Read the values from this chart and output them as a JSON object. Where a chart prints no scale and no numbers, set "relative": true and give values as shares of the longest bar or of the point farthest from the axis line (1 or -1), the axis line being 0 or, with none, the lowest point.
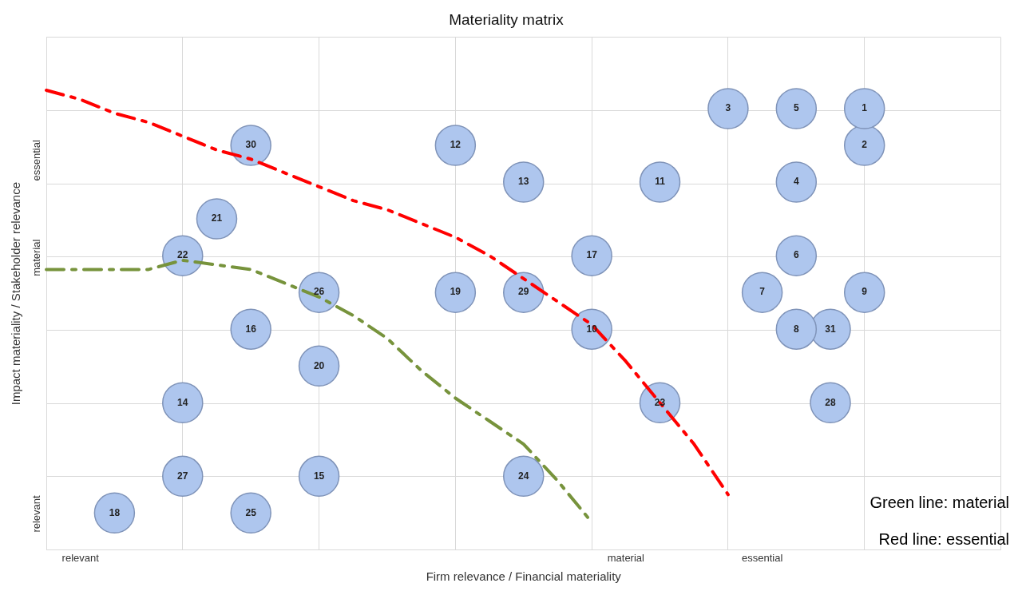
{
  "chart_data": {
    "type": "scatter",
    "title": "Materiality matrix",
    "xlabel": "Firm relevance / Financial materiality",
    "ylabel": "Impact materiality / Stakeholder relevance",
    "relative": true,
    "tick_labels": "x",
    "grid": true,
    "categories": [
      null,
      "relevant",
      null,
      null,
      null,
      null,
      null,
      null,
      null,
      null,
      null,
      null,
      null,
      null,
      null,
      null,
      null,
      "material",
      null,
      null,
      null,
      "essential",
      null,
      null,
      null,
      null,
      null,
      null,
      null
    ],
    "annotations": [
      "Green line: material",
      "Red line: essential",
      "relevant",
      "material",
      "essential"
    ],
    "series": [
      {
        "name": "1",
        "color": "#aec6ee",
        "values": [
          null,
          null,
          null,
          null,
          null,
          null,
          null,
          null,
          null,
          null,
          null,
          null,
          null,
          null,
          null,
          null,
          null,
          null,
          null,
          null,
          null,
          null,
          null,
          null,
          0.96,
          null,
          null,
          null,
          null
        ]
      },
      {
        "name": "2",
        "color": "#aec6ee",
        "values": [
          null,
          null,
          null,
          null,
          null,
          null,
          null,
          null,
          null,
          null,
          null,
          null,
          null,
          null,
          null,
          null,
          null,
          null,
          null,
          null,
          null,
          null,
          null,
          null,
          0.88,
          null,
          null,
          null,
          null
        ]
      },
      {
        "name": "3",
        "color": "#aec6ee",
        "values": [
          null,
          null,
          null,
          null,
          null,
          null,
          null,
          null,
          null,
          null,
          null,
          null,
          null,
          null,
          null,
          null,
          null,
          null,
          null,
          null,
          0.96,
          null,
          null,
          null,
          null,
          null,
          null,
          null,
          null
        ]
      },
      {
        "name": "4",
        "color": "#aec6ee",
        "values": [
          null,
          null,
          null,
          null,
          null,
          null,
          null,
          null,
          null,
          null,
          null,
          null,
          null,
          null,
          null,
          null,
          null,
          null,
          null,
          null,
          null,
          null,
          0.8,
          null,
          null,
          null,
          null,
          null,
          null
        ]
      },
      {
        "name": "5",
        "color": "#aec6ee",
        "values": [
          null,
          null,
          null,
          null,
          null,
          null,
          null,
          null,
          null,
          null,
          null,
          null,
          null,
          null,
          null,
          null,
          null,
          null,
          null,
          null,
          null,
          null,
          0.96,
          null,
          null,
          null,
          null,
          null,
          null
        ]
      },
      {
        "name": "6",
        "color": "#aec6ee",
        "values": [
          null,
          null,
          null,
          null,
          null,
          null,
          null,
          null,
          null,
          null,
          null,
          null,
          null,
          null,
          null,
          null,
          null,
          null,
          null,
          null,
          null,
          null,
          0.64,
          null,
          null,
          null,
          null,
          null,
          null
        ]
      },
      {
        "name": "7",
        "color": "#aec6ee",
        "values": [
          null,
          null,
          null,
          null,
          null,
          null,
          null,
          null,
          null,
          null,
          null,
          null,
          null,
          null,
          null,
          null,
          null,
          null,
          null,
          null,
          null,
          0.56,
          null,
          null,
          null,
          null,
          null,
          null,
          null
        ]
      },
      {
        "name": "8",
        "color": "#aec6ee",
        "values": [
          null,
          null,
          null,
          null,
          null,
          null,
          null,
          null,
          null,
          null,
          null,
          null,
          null,
          null,
          null,
          null,
          null,
          null,
          null,
          null,
          null,
          null,
          0.48,
          null,
          null,
          null,
          null,
          null,
          null
        ]
      },
      {
        "name": "9",
        "color": "#aec6ee",
        "values": [
          null,
          null,
          null,
          null,
          null,
          null,
          null,
          null,
          null,
          null,
          null,
          null,
          null,
          null,
          null,
          null,
          null,
          null,
          null,
          null,
          null,
          null,
          null,
          null,
          0.56,
          null,
          null,
          null,
          null
        ]
      },
      {
        "name": "10",
        "color": "#aec6ee",
        "values": [
          null,
          null,
          null,
          null,
          null,
          null,
          null,
          null,
          null,
          null,
          null,
          null,
          null,
          null,
          null,
          null,
          0.48,
          null,
          null,
          null,
          null,
          null,
          null,
          null,
          null,
          null,
          null,
          null,
          null
        ]
      },
      {
        "name": "11",
        "color": "#aec6ee",
        "values": [
          null,
          null,
          null,
          null,
          null,
          null,
          null,
          null,
          null,
          null,
          null,
          null,
          null,
          null,
          null,
          null,
          null,
          null,
          0.8,
          null,
          null,
          null,
          null,
          null,
          null,
          null,
          null,
          null,
          null
        ]
      },
      {
        "name": "12",
        "color": "#aec6ee",
        "values": [
          null,
          null,
          null,
          null,
          null,
          null,
          null,
          null,
          null,
          null,
          null,
          null,
          0.88,
          null,
          null,
          null,
          null,
          null,
          null,
          null,
          null,
          null,
          null,
          null,
          null,
          null,
          null,
          null,
          null
        ]
      },
      {
        "name": "13",
        "color": "#aec6ee",
        "values": [
          null,
          null,
          null,
          null,
          null,
          null,
          null,
          null,
          null,
          null,
          null,
          null,
          null,
          null,
          0.8,
          null,
          null,
          null,
          null,
          null,
          null,
          null,
          null,
          null,
          null,
          null,
          null,
          null,
          null
        ]
      },
      {
        "name": "14",
        "color": "#aec6ee",
        "values": [
          null,
          null,
          null,
          null,
          0.32,
          null,
          null,
          null,
          null,
          null,
          null,
          null,
          null,
          null,
          null,
          null,
          null,
          null,
          null,
          null,
          null,
          null,
          null,
          null,
          null,
          null,
          null,
          null,
          null
        ]
      },
      {
        "name": "15",
        "color": "#aec6ee",
        "values": [
          null,
          null,
          null,
          null,
          null,
          null,
          null,
          null,
          0.16,
          null,
          null,
          null,
          null,
          null,
          null,
          null,
          null,
          null,
          null,
          null,
          null,
          null,
          null,
          null,
          null,
          null,
          null,
          null,
          null
        ]
      },
      {
        "name": "16",
        "color": "#aec6ee",
        "values": [
          null,
          null,
          null,
          null,
          null,
          null,
          0.48,
          null,
          null,
          null,
          null,
          null,
          null,
          null,
          null,
          null,
          null,
          null,
          null,
          null,
          null,
          null,
          null,
          null,
          null,
          null,
          null,
          null,
          null
        ]
      },
      {
        "name": "17",
        "color": "#aec6ee",
        "values": [
          null,
          null,
          null,
          null,
          null,
          null,
          null,
          null,
          null,
          null,
          null,
          null,
          null,
          null,
          null,
          null,
          0.64,
          null,
          null,
          null,
          null,
          null,
          null,
          null,
          null,
          null,
          null,
          null,
          null
        ]
      },
      {
        "name": "18",
        "color": "#aec6ee",
        "values": [
          null,
          null,
          0.08,
          null,
          null,
          null,
          null,
          null,
          null,
          null,
          null,
          null,
          null,
          null,
          null,
          null,
          null,
          null,
          null,
          null,
          null,
          null,
          null,
          null,
          null,
          null,
          null,
          null,
          null
        ]
      },
      {
        "name": "19",
        "color": "#aec6ee",
        "values": [
          null,
          null,
          null,
          null,
          null,
          null,
          null,
          null,
          null,
          null,
          null,
          null,
          0.56,
          null,
          null,
          null,
          null,
          null,
          null,
          null,
          null,
          null,
          null,
          null,
          null,
          null,
          null,
          null,
          null
        ]
      },
      {
        "name": "20",
        "color": "#aec6ee",
        "values": [
          null,
          null,
          null,
          null,
          null,
          null,
          null,
          null,
          0.4,
          null,
          null,
          null,
          null,
          null,
          null,
          null,
          null,
          null,
          null,
          null,
          null,
          null,
          null,
          null,
          null,
          null,
          null,
          null,
          null
        ]
      },
      {
        "name": "21",
        "color": "#aec6ee",
        "values": [
          null,
          null,
          null,
          null,
          null,
          0.72,
          null,
          null,
          null,
          null,
          null,
          null,
          null,
          null,
          null,
          null,
          null,
          null,
          null,
          null,
          null,
          null,
          null,
          null,
          null,
          null,
          null,
          null,
          null
        ]
      },
      {
        "name": "22",
        "color": "#aec6ee",
        "values": [
          null,
          null,
          null,
          null,
          0.64,
          null,
          null,
          null,
          null,
          null,
          null,
          null,
          null,
          null,
          null,
          null,
          null,
          null,
          null,
          null,
          null,
          null,
          null,
          null,
          null,
          null,
          null,
          null,
          null
        ]
      },
      {
        "name": "23",
        "color": "#aec6ee",
        "values": [
          null,
          null,
          null,
          null,
          null,
          null,
          null,
          null,
          null,
          null,
          null,
          null,
          null,
          null,
          null,
          null,
          null,
          null,
          0.32,
          null,
          null,
          null,
          null,
          null,
          null,
          null,
          null,
          null,
          null
        ]
      },
      {
        "name": "24",
        "color": "#aec6ee",
        "values": [
          null,
          null,
          null,
          null,
          null,
          null,
          null,
          null,
          null,
          null,
          null,
          null,
          null,
          null,
          0.16,
          null,
          null,
          null,
          null,
          null,
          null,
          null,
          null,
          null,
          null,
          null,
          null,
          null,
          null
        ]
      },
      {
        "name": "25",
        "color": "#aec6ee",
        "values": [
          null,
          null,
          null,
          null,
          null,
          null,
          0.08,
          null,
          null,
          null,
          null,
          null,
          null,
          null,
          null,
          null,
          null,
          null,
          null,
          null,
          null,
          null,
          null,
          null,
          null,
          null,
          null,
          null,
          null
        ]
      },
      {
        "name": "26",
        "color": "#aec6ee",
        "values": [
          null,
          null,
          null,
          null,
          null,
          null,
          null,
          null,
          0.56,
          null,
          null,
          null,
          null,
          null,
          null,
          null,
          null,
          null,
          null,
          null,
          null,
          null,
          null,
          null,
          null,
          null,
          null,
          null,
          null
        ]
      },
      {
        "name": "27",
        "color": "#aec6ee",
        "values": [
          null,
          null,
          null,
          null,
          0.16,
          null,
          null,
          null,
          null,
          null,
          null,
          null,
          null,
          null,
          null,
          null,
          null,
          null,
          null,
          null,
          null,
          null,
          null,
          null,
          null,
          null,
          null,
          null,
          null
        ]
      },
      {
        "name": "28",
        "color": "#aec6ee",
        "values": [
          null,
          null,
          null,
          null,
          null,
          null,
          null,
          null,
          null,
          null,
          null,
          null,
          null,
          null,
          null,
          null,
          null,
          null,
          null,
          null,
          null,
          null,
          null,
          0.32,
          null,
          null,
          null,
          null,
          null
        ]
      },
      {
        "name": "29",
        "color": "#aec6ee",
        "values": [
          null,
          null,
          null,
          null,
          null,
          null,
          null,
          null,
          null,
          null,
          null,
          null,
          null,
          null,
          0.56,
          null,
          null,
          null,
          null,
          null,
          null,
          null,
          null,
          null,
          null,
          null,
          null,
          null,
          null
        ]
      },
      {
        "name": "30",
        "color": "#aec6ee",
        "values": [
          null,
          null,
          null,
          null,
          null,
          null,
          0.88,
          null,
          null,
          null,
          null,
          null,
          null,
          null,
          null,
          null,
          null,
          null,
          null,
          null,
          null,
          null,
          null,
          null,
          null,
          null,
          null,
          null,
          null
        ]
      },
      {
        "name": "31",
        "color": "#aec6ee",
        "values": [
          null,
          null,
          null,
          null,
          null,
          null,
          null,
          null,
          null,
          null,
          null,
          null,
          null,
          null,
          null,
          null,
          null,
          null,
          null,
          null,
          null,
          null,
          null,
          0.48,
          null,
          null,
          null,
          null,
          null
        ]
      },
      {
        "type": "line",
        "color": "#ff0000",
        "line_style": "dashed",
        "values": [
          1,
          0.98,
          0.95,
          0.93,
          0.9,
          0.87,
          0.85,
          0.82,
          0.79,
          0.76,
          0.74,
          0.71,
          0.68,
          0.64,
          0.59,
          0.54,
          0.49,
          0.41,
          0.32,
          0.23,
          0.12,
          null,
          null,
          null,
          null,
          null,
          null,
          null,
          null
        ]
      },
      {
        "type": "line",
        "color": "#77933c",
        "line_style": "dashed",
        "values": [
          0.61,
          0.61,
          0.61,
          0.61,
          0.63,
          0.62,
          0.61,
          0.58,
          0.55,
          0.51,
          0.46,
          0.39,
          0.33,
          0.28,
          0.23,
          0.15,
          0.06,
          null,
          null,
          null,
          null,
          null,
          null,
          null,
          null,
          null,
          null,
          null,
          null
        ]
      }
    ]
  }
}
